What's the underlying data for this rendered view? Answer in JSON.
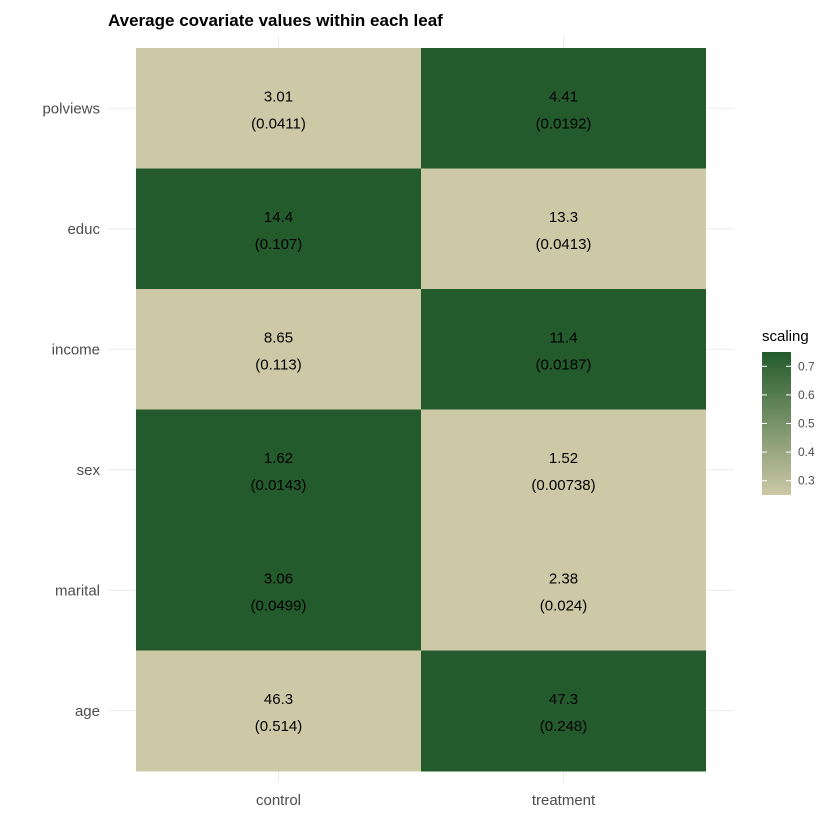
{
  "chart_data": {
    "type": "heatmap",
    "title": "Average covariate values within each leaf",
    "xlabel": "",
    "ylabel": "",
    "x_categories": [
      "control",
      "treatment"
    ],
    "y_categories": [
      "polviews",
      "educ",
      "income",
      "sex",
      "marital",
      "age"
    ],
    "cells": [
      {
        "row": "polviews",
        "col": "control",
        "value": "3.01",
        "se": "(0.0411)",
        "scaling": 0.25
      },
      {
        "row": "polviews",
        "col": "treatment",
        "value": "4.41",
        "se": "(0.0192)",
        "scaling": 0.75
      },
      {
        "row": "educ",
        "col": "control",
        "value": "14.4",
        "se": "(0.107)",
        "scaling": 0.75
      },
      {
        "row": "educ",
        "col": "treatment",
        "value": "13.3",
        "se": "(0.0413)",
        "scaling": 0.25
      },
      {
        "row": "income",
        "col": "control",
        "value": "8.65",
        "se": "(0.113)",
        "scaling": 0.25
      },
      {
        "row": "income",
        "col": "treatment",
        "value": "11.4",
        "se": "(0.0187)",
        "scaling": 0.75
      },
      {
        "row": "sex",
        "col": "control",
        "value": "1.62",
        "se": "(0.0143)",
        "scaling": 0.75
      },
      {
        "row": "sex",
        "col": "treatment",
        "value": "1.52",
        "se": "(0.00738)",
        "scaling": 0.25
      },
      {
        "row": "marital",
        "col": "control",
        "value": "3.06",
        "se": "(0.0499)",
        "scaling": 0.75
      },
      {
        "row": "marital",
        "col": "treatment",
        "value": "2.38",
        "se": "(0.024)",
        "scaling": 0.25
      },
      {
        "row": "age",
        "col": "control",
        "value": "46.3",
        "se": "(0.514)",
        "scaling": 0.25
      },
      {
        "row": "age",
        "col": "treatment",
        "value": "47.3",
        "se": "(0.248)",
        "scaling": 0.75
      }
    ],
    "legend": {
      "title": "scaling",
      "placement": "right",
      "range": [
        0.25,
        0.75
      ],
      "ticks": [
        "0.3",
        "0.4",
        "0.5",
        "0.6",
        "0.7"
      ],
      "tick_values": [
        0.3,
        0.4,
        0.5,
        0.6,
        0.7
      ],
      "low_color": "#cdc8a6",
      "high_color": "#235b2c"
    },
    "grid": true
  }
}
